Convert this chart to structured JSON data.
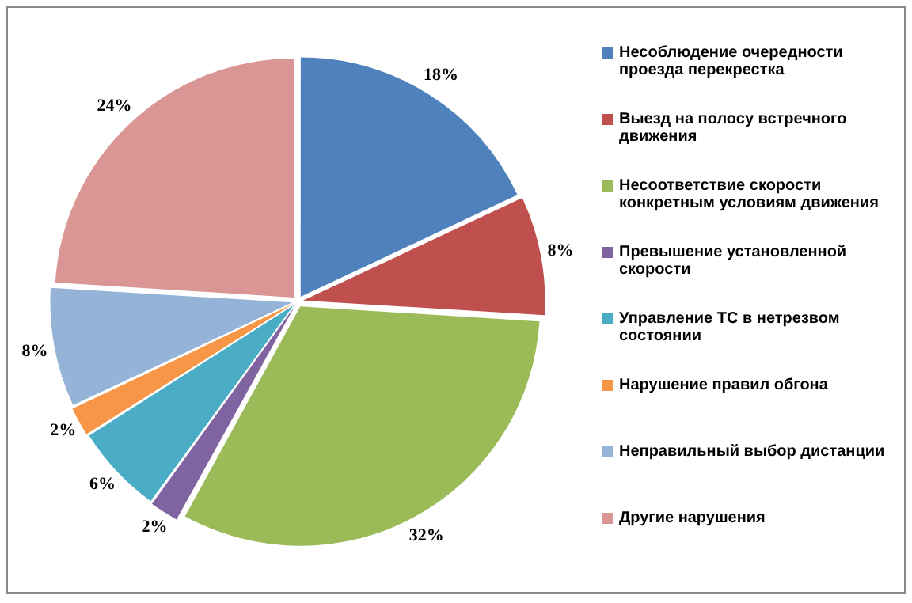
{
  "chart_data": {
    "type": "pie",
    "categories": [
      "Несоблюдение очередности проезда перекрестка",
      "Выезд на полосу встречного движения",
      "Несоответствие скорости конкретным условиям движения",
      "Превышение установленной скорости",
      "Управление ТС в нетрезвом состоянии",
      "Нарушение правил обгона",
      "Неправильный выбор дистанции",
      "Другие нарушения"
    ],
    "values": [
      18,
      8,
      32,
      2,
      6,
      2,
      8,
      24
    ],
    "value_labels": [
      "18%",
      "8%",
      "32%",
      "2%",
      "6%",
      "2%",
      "8%",
      "24%"
    ],
    "colors": [
      "#4f81bd",
      "#c0504d",
      "#9bbb59",
      "#8064a2",
      "#4bacc6",
      "#f79646",
      "#95b3d7",
      "#d99694"
    ],
    "legend": "right"
  }
}
